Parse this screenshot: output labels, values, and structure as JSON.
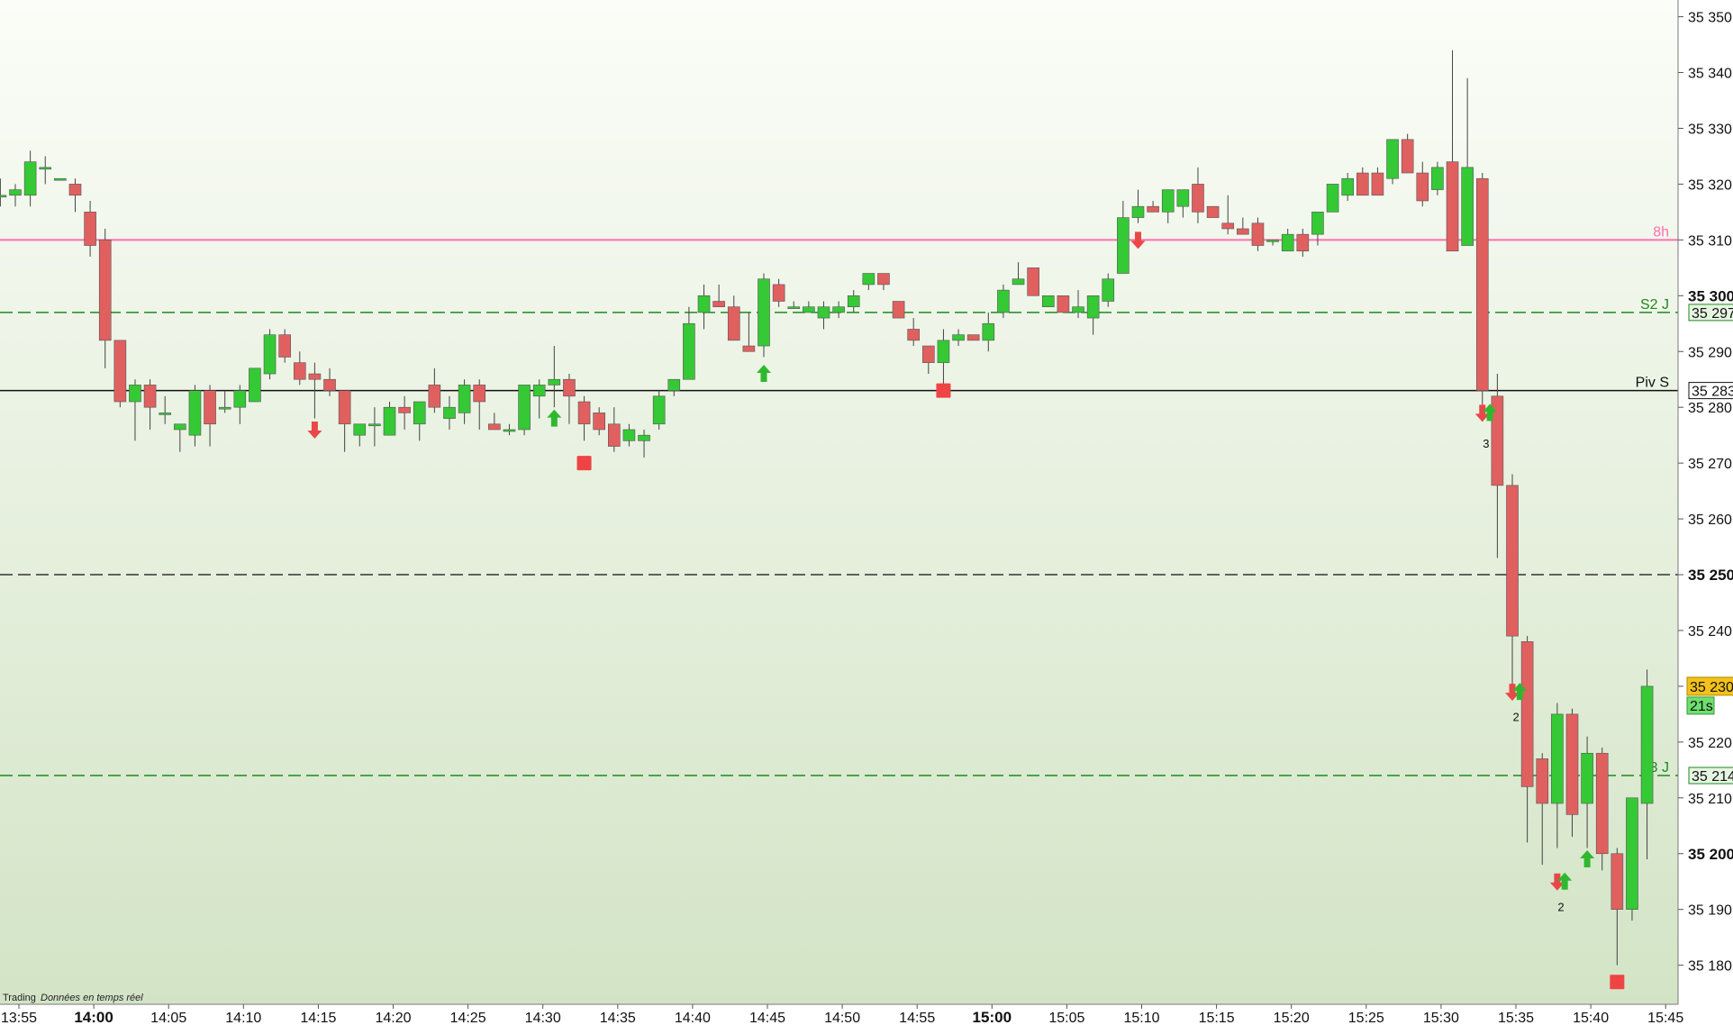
{
  "footer": {
    "app": "Trading",
    "status": "Données en temps réel"
  },
  "colors": {
    "bull": "#35c935",
    "bear": "#e06060",
    "wick": "#444444",
    "pink": "#ff6fb0",
    "green_line": "#1d8a1d",
    "price_tag": "#f2c21b",
    "timer_tag": "#6ddf6d"
  },
  "chart_data": {
    "type": "candlestick",
    "interval": "30s",
    "y_range": [
      35173,
      35353
    ],
    "x_ticks": [
      {
        "t": 0,
        "label": "13:55",
        "bold": false
      },
      {
        "t": 10,
        "label": "14:00",
        "bold": true
      },
      {
        "t": 20,
        "label": "14:05",
        "bold": false
      },
      {
        "t": 30,
        "label": "14:10",
        "bold": false
      },
      {
        "t": 40,
        "label": "14:15",
        "bold": false
      },
      {
        "t": 50,
        "label": "14:20",
        "bold": false
      },
      {
        "t": 60,
        "label": "14:25",
        "bold": false
      },
      {
        "t": 70,
        "label": "14:30",
        "bold": false
      },
      {
        "t": 80,
        "label": "14:35",
        "bold": false
      },
      {
        "t": 90,
        "label": "14:40",
        "bold": false
      },
      {
        "t": 100,
        "label": "14:45",
        "bold": false
      },
      {
        "t": 110,
        "label": "14:50",
        "bold": false
      },
      {
        "t": 120,
        "label": "14:55",
        "bold": false
      },
      {
        "t": 130,
        "label": "15:00",
        "bold": true
      },
      {
        "t": 140,
        "label": "15:05",
        "bold": false
      },
      {
        "t": 150,
        "label": "15:10",
        "bold": false
      },
      {
        "t": 160,
        "label": "15:15",
        "bold": false
      },
      {
        "t": 170,
        "label": "15:20",
        "bold": false
      },
      {
        "t": 180,
        "label": "15:25",
        "bold": false
      },
      {
        "t": 190,
        "label": "15:30",
        "bold": false
      },
      {
        "t": 200,
        "label": "15:35",
        "bold": false
      },
      {
        "t": 210,
        "label": "15:40",
        "bold": false
      },
      {
        "t": 220,
        "label": "15:45",
        "bold": false
      }
    ],
    "y_ticks": [
      {
        "v": 35350,
        "label": "35 350",
        "bold": false
      },
      {
        "v": 35340,
        "label": "35 340",
        "bold": false
      },
      {
        "v": 35330,
        "label": "35 330",
        "bold": false
      },
      {
        "v": 35320,
        "label": "35 320",
        "bold": false
      },
      {
        "v": 35310,
        "label": "35 310",
        "bold": false
      },
      {
        "v": 35300,
        "label": "35 300",
        "bold": true
      },
      {
        "v": 35290,
        "label": "35 290",
        "bold": false
      },
      {
        "v": 35280,
        "label": "35 280",
        "bold": false
      },
      {
        "v": 35270,
        "label": "35 270",
        "bold": false
      },
      {
        "v": 35260,
        "label": "35 260",
        "bold": false
      },
      {
        "v": 35250,
        "label": "35 250",
        "bold": true
      },
      {
        "v": 35240,
        "label": "35 240",
        "bold": false
      },
      {
        "v": 35230,
        "label": "35 230",
        "bold": false
      },
      {
        "v": 35220,
        "label": "35 220",
        "bold": false
      },
      {
        "v": 35210,
        "label": "35 210",
        "bold": false
      },
      {
        "v": 35200,
        "label": "35 200",
        "bold": true
      },
      {
        "v": 35190,
        "label": "35 190",
        "bold": false
      },
      {
        "v": 35180,
        "label": "35 180",
        "bold": false
      }
    ],
    "levels": [
      {
        "name": "8h",
        "label": "8h",
        "price": 35310,
        "color": "#ff6fb0",
        "style": "solid",
        "tag": ""
      },
      {
        "name": "S2 J",
        "label": "S2  J",
        "price": 35297,
        "color": "#1d8a1d",
        "style": "dashed",
        "tag": "35 297"
      },
      {
        "name": "Piv S",
        "label": "Piv S",
        "price": 35283,
        "color": "#111111",
        "style": "solid",
        "tag": "35 283"
      },
      {
        "name": "r35250",
        "label": "",
        "price": 35250,
        "color": "#333333",
        "style": "dashed",
        "tag": ""
      },
      {
        "name": "S3 J",
        "label": "S3  J",
        "price": 35214,
        "color": "#1d8a1d",
        "style": "dashed",
        "tag": "35 214"
      }
    ],
    "current": {
      "price": 35230,
      "label": "35 230",
      "timer": "21s"
    },
    "candles": [
      {
        "t": -2,
        "o": 35318,
        "h": 35321,
        "l": 35316,
        "c": 35318
      },
      {
        "t": 0,
        "o": 35318,
        "h": 35320,
        "l": 35316,
        "c": 35319
      },
      {
        "t": 2,
        "o": 35318,
        "h": 35326,
        "l": 35316,
        "c": 35324
      },
      {
        "t": 4,
        "o": 35323,
        "h": 35325,
        "l": 35320,
        "c": 35323
      },
      {
        "t": 6,
        "o": 35321,
        "h": 35321,
        "l": 35321,
        "c": 35321
      },
      {
        "t": 8,
        "o": 35320,
        "h": 35321,
        "l": 35315,
        "c": 35318
      },
      {
        "t": 10,
        "o": 35315,
        "h": 35317,
        "l": 35307,
        "c": 35309
      },
      {
        "t": 12,
        "o": 35310,
        "h": 35312,
        "l": 35287,
        "c": 35292
      },
      {
        "t": 14,
        "o": 35292,
        "h": 35292,
        "l": 35280,
        "c": 35281
      },
      {
        "t": 16,
        "o": 35281,
        "h": 35285,
        "l": 35274,
        "c": 35284
      },
      {
        "t": 18,
        "o": 35284,
        "h": 35285,
        "l": 35276,
        "c": 35280
      },
      {
        "t": 20,
        "o": 35279,
        "h": 35282,
        "l": 35277,
        "c": 35279
      },
      {
        "t": 22,
        "o": 35276,
        "h": 35277,
        "l": 35272,
        "c": 35277
      },
      {
        "t": 24,
        "o": 35275,
        "h": 35284,
        "l": 35273,
        "c": 35283
      },
      {
        "t": 26,
        "o": 35283,
        "h": 35284,
        "l": 35273,
        "c": 35277
      },
      {
        "t": 28,
        "o": 35280,
        "h": 35283,
        "l": 35279,
        "c": 35280
      },
      {
        "t": 30,
        "o": 35280,
        "h": 35284,
        "l": 35277,
        "c": 35283
      },
      {
        "t": 32,
        "o": 35281,
        "h": 35287,
        "l": 35281,
        "c": 35287
      },
      {
        "t": 34,
        "o": 35286,
        "h": 35294,
        "l": 35285,
        "c": 35293
      },
      {
        "t": 36,
        "o": 35293,
        "h": 35294,
        "l": 35288,
        "c": 35289
      },
      {
        "t": 38,
        "o": 35288,
        "h": 35290,
        "l": 35284,
        "c": 35285
      },
      {
        "t": 40,
        "o": 35286,
        "h": 35288,
        "l": 35278,
        "c": 35285
      },
      {
        "t": 42,
        "o": 35285,
        "h": 35287,
        "l": 35282,
        "c": 35283
      },
      {
        "t": 44,
        "o": 35283,
        "h": 35283,
        "l": 35272,
        "c": 35277
      },
      {
        "t": 46,
        "o": 35275,
        "h": 35277,
        "l": 35273,
        "c": 35277
      },
      {
        "t": 48,
        "o": 35277,
        "h": 35280,
        "l": 35273,
        "c": 35277
      },
      {
        "t": 50,
        "o": 35275,
        "h": 35281,
        "l": 35275,
        "c": 35280
      },
      {
        "t": 52,
        "o": 35280,
        "h": 35282,
        "l": 35276,
        "c": 35279
      },
      {
        "t": 54,
        "o": 35277,
        "h": 35281,
        "l": 35274,
        "c": 35281
      },
      {
        "t": 56,
        "o": 35284,
        "h": 35287,
        "l": 35279,
        "c": 35280
      },
      {
        "t": 58,
        "o": 35278,
        "h": 35282,
        "l": 35276,
        "c": 35280
      },
      {
        "t": 60,
        "o": 35279,
        "h": 35285,
        "l": 35277,
        "c": 35284
      },
      {
        "t": 62,
        "o": 35284,
        "h": 35285,
        "l": 35276,
        "c": 35281
      },
      {
        "t": 64,
        "o": 35277,
        "h": 35279,
        "l": 35276,
        "c": 35276
      },
      {
        "t": 66,
        "o": 35276,
        "h": 35277,
        "l": 35275,
        "c": 35276
      },
      {
        "t": 68,
        "o": 35276,
        "h": 35284,
        "l": 35275,
        "c": 35284
      },
      {
        "t": 70,
        "o": 35282,
        "h": 35285,
        "l": 35278,
        "c": 35284
      },
      {
        "t": 72,
        "o": 35284,
        "h": 35291,
        "l": 35280,
        "c": 35285
      },
      {
        "t": 74,
        "o": 35285,
        "h": 35286,
        "l": 35277,
        "c": 35282
      },
      {
        "t": 76,
        "o": 35281,
        "h": 35282,
        "l": 35274,
        "c": 35277
      },
      {
        "t": 78,
        "o": 35279,
        "h": 35280,
        "l": 35275,
        "c": 35276
      },
      {
        "t": 80,
        "o": 35277,
        "h": 35280,
        "l": 35272,
        "c": 35273
      },
      {
        "t": 82,
        "o": 35274,
        "h": 35277,
        "l": 35273,
        "c": 35276
      },
      {
        "t": 84,
        "o": 35274,
        "h": 35276,
        "l": 35271,
        "c": 35275
      },
      {
        "t": 86,
        "o": 35277,
        "h": 35283,
        "l": 35276,
        "c": 35282
      },
      {
        "t": 88,
        "o": 35283,
        "h": 35285,
        "l": 35282,
        "c": 35285
      },
      {
        "t": 90,
        "o": 35285,
        "h": 35298,
        "l": 35285,
        "c": 35295
      },
      {
        "t": 92,
        "o": 35297,
        "h": 35302,
        "l": 35294,
        "c": 35300
      },
      {
        "t": 94,
        "o": 35299,
        "h": 35302,
        "l": 35298,
        "c": 35298
      },
      {
        "t": 96,
        "o": 35298,
        "h": 35300,
        "l": 35292,
        "c": 35292
      },
      {
        "t": 98,
        "o": 35291,
        "h": 35297,
        "l": 35291,
        "c": 35290
      },
      {
        "t": 100,
        "o": 35291,
        "h": 35304,
        "l": 35289,
        "c": 35303
      },
      {
        "t": 102,
        "o": 35302,
        "h": 35303,
        "l": 35298,
        "c": 35299
      },
      {
        "t": 104,
        "o": 35298,
        "h": 35299,
        "l": 35298,
        "c": 35298
      },
      {
        "t": 106,
        "o": 35297,
        "h": 35299,
        "l": 35297,
        "c": 35298
      },
      {
        "t": 108,
        "o": 35296,
        "h": 35299,
        "l": 35294,
        "c": 35298
      },
      {
        "t": 110,
        "o": 35297,
        "h": 35299,
        "l": 35296,
        "c": 35298
      },
      {
        "t": 112,
        "o": 35298,
        "h": 35301,
        "l": 35297,
        "c": 35300
      },
      {
        "t": 114,
        "o": 35302,
        "h": 35304,
        "l": 35301,
        "c": 35304
      },
      {
        "t": 116,
        "o": 35304,
        "h": 35304,
        "l": 35301,
        "c": 35302
      },
      {
        "t": 118,
        "o": 35299,
        "h": 35299,
        "l": 35296,
        "c": 35296
      },
      {
        "t": 120,
        "o": 35294,
        "h": 35296,
        "l": 35291,
        "c": 35292
      },
      {
        "t": 122,
        "o": 35291,
        "h": 35291,
        "l": 35286,
        "c": 35288
      },
      {
        "t": 124,
        "o": 35288,
        "h": 35294,
        "l": 35284,
        "c": 35292
      },
      {
        "t": 126,
        "o": 35292,
        "h": 35294,
        "l": 35291,
        "c": 35293
      },
      {
        "t": 128,
        "o": 35293,
        "h": 35293,
        "l": 35292,
        "c": 35292
      },
      {
        "t": 130,
        "o": 35292,
        "h": 35297,
        "l": 35290,
        "c": 35295
      },
      {
        "t": 132,
        "o": 35297,
        "h": 35302,
        "l": 35296,
        "c": 35301
      },
      {
        "t": 134,
        "o": 35302,
        "h": 35306,
        "l": 35302,
        "c": 35303
      },
      {
        "t": 136,
        "o": 35305,
        "h": 35305,
        "l": 35300,
        "c": 35300
      },
      {
        "t": 138,
        "o": 35298,
        "h": 35300,
        "l": 35298,
        "c": 35300
      },
      {
        "t": 140,
        "o": 35300,
        "h": 35300,
        "l": 35297,
        "c": 35297
      },
      {
        "t": 142,
        "o": 35297,
        "h": 35301,
        "l": 35296,
        "c": 35298
      },
      {
        "t": 144,
        "o": 35296,
        "h": 35300,
        "l": 35293,
        "c": 35300
      },
      {
        "t": 146,
        "o": 35299,
        "h": 35304,
        "l": 35298,
        "c": 35303
      },
      {
        "t": 148,
        "o": 35304,
        "h": 35317,
        "l": 35304,
        "c": 35314
      },
      {
        "t": 150,
        "o": 35314,
        "h": 35319,
        "l": 35313,
        "c": 35316
      },
      {
        "t": 152,
        "o": 35316,
        "h": 35317,
        "l": 35315,
        "c": 35315
      },
      {
        "t": 154,
        "o": 35315,
        "h": 35318,
        "l": 35313,
        "c": 35319
      },
      {
        "t": 156,
        "o": 35316,
        "h": 35318,
        "l": 35314,
        "c": 35319
      },
      {
        "t": 158,
        "o": 35320,
        "h": 35323,
        "l": 35313,
        "c": 35315
      },
      {
        "t": 160,
        "o": 35316,
        "h": 35316,
        "l": 35314,
        "c": 35314
      },
      {
        "t": 162,
        "o": 35313,
        "h": 35318,
        "l": 35311,
        "c": 35312
      },
      {
        "t": 164,
        "o": 35312,
        "h": 35314,
        "l": 35311,
        "c": 35311
      },
      {
        "t": 166,
        "o": 35313,
        "h": 35314,
        "l": 35308,
        "c": 35309
      },
      {
        "t": 168,
        "o": 35310,
        "h": 35310,
        "l": 35309,
        "c": 35310
      },
      {
        "t": 170,
        "o": 35308,
        "h": 35312,
        "l": 35308,
        "c": 35311
      },
      {
        "t": 172,
        "o": 35311,
        "h": 35312,
        "l": 35307,
        "c": 35308
      },
      {
        "t": 174,
        "o": 35311,
        "h": 35315,
        "l": 35309,
        "c": 35315
      },
      {
        "t": 176,
        "o": 35315,
        "h": 35320,
        "l": 35315,
        "c": 35320
      },
      {
        "t": 178,
        "o": 35318,
        "h": 35322,
        "l": 35317,
        "c": 35321
      },
      {
        "t": 180,
        "o": 35322,
        "h": 35323,
        "l": 35318,
        "c": 35318
      },
      {
        "t": 182,
        "o": 35322,
        "h": 35323,
        "l": 35318,
        "c": 35318
      },
      {
        "t": 184,
        "o": 35321,
        "h": 35328,
        "l": 35320,
        "c": 35328
      },
      {
        "t": 186,
        "o": 35328,
        "h": 35329,
        "l": 35322,
        "c": 35322
      },
      {
        "t": 188,
        "o": 35322,
        "h": 35324,
        "l": 35316,
        "c": 35317
      },
      {
        "t": 190,
        "o": 35319,
        "h": 35324,
        "l": 35318,
        "c": 35323
      },
      {
        "t": 192,
        "o": 35324,
        "h": 35344,
        "l": 35309,
        "c": 35308
      },
      {
        "t": 194,
        "o": 35309,
        "h": 35339,
        "l": 35309,
        "c": 35323
      },
      {
        "t": 196,
        "o": 35321,
        "h": 35322,
        "l": 35280,
        "c": 35283
      },
      {
        "t": 198,
        "o": 35282,
        "h": 35286,
        "l": 35253,
        "c": 35266
      },
      {
        "t": 200,
        "o": 35266,
        "h": 35268,
        "l": 35228,
        "c": 35239
      },
      {
        "t": 202,
        "o": 35238,
        "h": 35239,
        "l": 35202,
        "c": 35212
      },
      {
        "t": 204,
        "o": 35217,
        "h": 35218,
        "l": 35198,
        "c": 35209
      },
      {
        "t": 206,
        "o": 35209,
        "h": 35227,
        "l": 35201,
        "c": 35225
      },
      {
        "t": 208,
        "o": 35225,
        "h": 35226,
        "l": 35203,
        "c": 35207
      },
      {
        "t": 210,
        "o": 35209,
        "h": 35221,
        "l": 35201,
        "c": 35218
      },
      {
        "t": 212,
        "o": 35218,
        "h": 35219,
        "l": 35197,
        "c": 35200
      },
      {
        "t": 214,
        "o": 35200,
        "h": 35201,
        "l": 35180,
        "c": 35190
      },
      {
        "t": 216,
        "o": 35190,
        "h": 35210,
        "l": 35188,
        "c": 35210
      },
      {
        "t": 218,
        "o": 35209,
        "h": 35233,
        "l": 35199,
        "c": 35230
      }
    ],
    "markers": [
      {
        "t": 40,
        "price": 35276,
        "kind": "arrow-down"
      },
      {
        "t": 72,
        "price": 35278,
        "kind": "arrow-up"
      },
      {
        "t": 76,
        "price": 35270,
        "kind": "square"
      },
      {
        "t": 100,
        "price": 35286,
        "kind": "arrow-up"
      },
      {
        "t": 124,
        "price": 35283,
        "kind": "square"
      },
      {
        "t": 150,
        "price": 35310,
        "kind": "arrow-down"
      },
      {
        "t": 196,
        "price": 35279,
        "kind": "arrow-down"
      },
      {
        "t": 197,
        "price": 35279,
        "kind": "arrow-up"
      },
      {
        "t": 200,
        "price": 35229,
        "kind": "arrow-down"
      },
      {
        "t": 201,
        "price": 35229,
        "kind": "arrow-up"
      },
      {
        "t": 206,
        "price": 35195,
        "kind": "arrow-down"
      },
      {
        "t": 207,
        "price": 35195,
        "kind": "arrow-up"
      },
      {
        "t": 210,
        "price": 35199,
        "kind": "arrow-up"
      },
      {
        "t": 214,
        "price": 35177,
        "kind": "square"
      }
    ],
    "counts": [
      {
        "t": 196.5,
        "price": 35275,
        "label": "3"
      },
      {
        "t": 200.5,
        "price": 35226,
        "label": "2"
      },
      {
        "t": 206.5,
        "price": 35192,
        "label": "2"
      }
    ]
  }
}
